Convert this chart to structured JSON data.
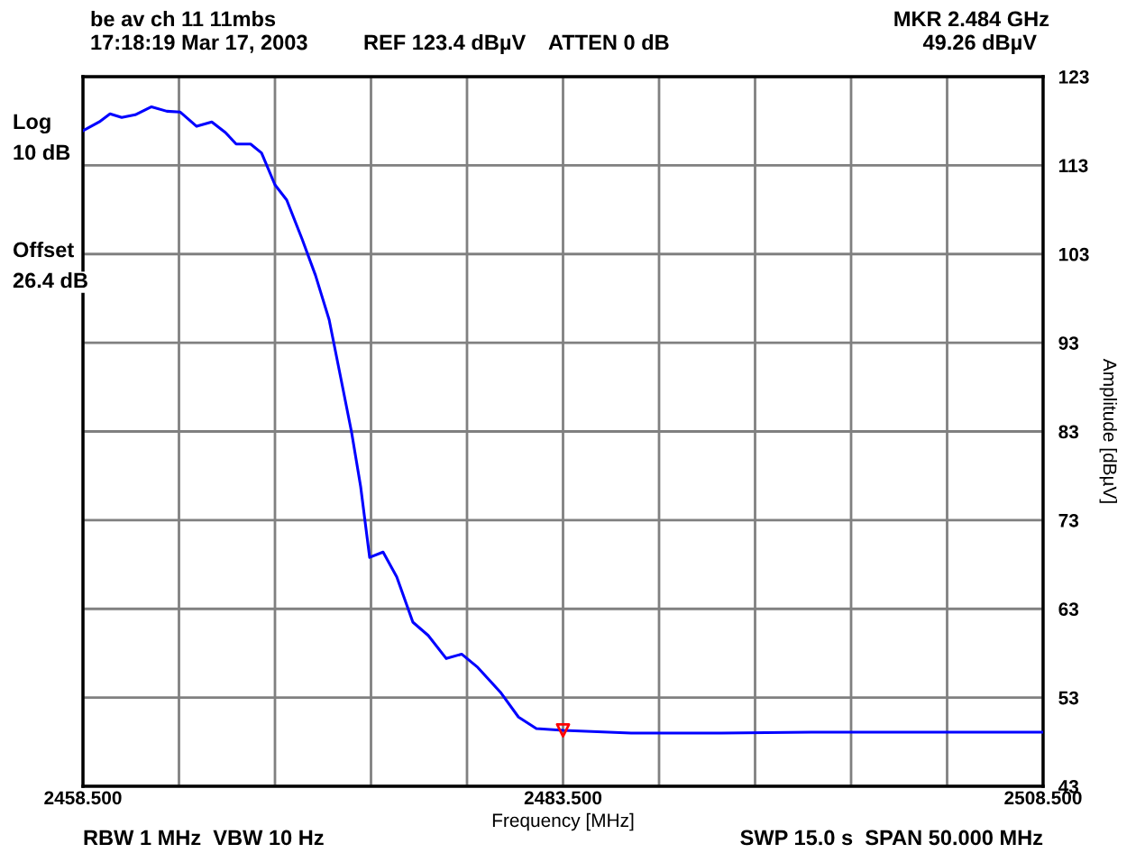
{
  "chart_data": {
    "type": "line",
    "title": "be av ch 11 11mbs",
    "xlabel": "Frequency [MHz]",
    "ylabel": "Amplitude [dBµV]",
    "annotations": [
      "17:18:19 Mar 17, 2003",
      "REF 123.4 dBµV",
      "ATTEN 0 dB",
      "MKR 2.484 GHz",
      "49.26 dBµV",
      "Log",
      "10 dB",
      "Offset",
      "26.4 dB",
      "RBW 1 MHz  VBW 10 Hz",
      "SWP 15.0 s  SPAN 50.000 MHz"
    ],
    "xlim": [
      2458.5,
      2508.5
    ],
    "xticks": [
      {
        "value": 2458.5,
        "label": "2458.500"
      },
      {
        "value": 2463.5,
        "label": null
      },
      {
        "value": 2468.5,
        "label": null
      },
      {
        "value": 2473.5,
        "label": null
      },
      {
        "value": 2478.5,
        "label": null
      },
      {
        "value": 2483.5,
        "label": "2483.500"
      },
      {
        "value": 2488.5,
        "label": null
      },
      {
        "value": 2493.5,
        "label": null
      },
      {
        "value": 2498.5,
        "label": null
      },
      {
        "value": 2503.5,
        "label": null
      },
      {
        "value": 2508.5,
        "label": "2508.500"
      }
    ],
    "ylim": [
      43,
      123
    ],
    "yticks": [
      43,
      53,
      63,
      73,
      83,
      93,
      103,
      113,
      123
    ],
    "grid": true,
    "series": [
      {
        "color": "#0000ff",
        "marker": "none",
        "line_style": "solid",
        "x": [
          2458.5,
          2459.35,
          2459.91,
          2460.52,
          2461.22,
          2462.07,
          2462.87,
          2463.57,
          2464.42,
          2465.21,
          2465.92,
          2466.48,
          2467.23,
          2467.8,
          2468.5,
          2469.11,
          2469.91,
          2470.61,
          2471.32,
          2471.93,
          2472.49,
          2472.96,
          2473.43,
          2474.13,
          2474.84,
          2475.68,
          2476.48,
          2477.42,
          2478.22,
          2479.06,
          2480.24,
          2481.18,
          2482.11,
          2483.52,
          2487.05,
          2491.74,
          2496.43,
          2501.13,
          2508.5
        ],
        "values": [
          116.9,
          117.9,
          118.8,
          118.4,
          118.7,
          119.6,
          119.1,
          119.0,
          117.4,
          117.9,
          116.7,
          115.4,
          115.4,
          114.4,
          110.8,
          109.1,
          104.7,
          100.6,
          95.6,
          89.0,
          82.9,
          76.8,
          68.8,
          69.4,
          66.6,
          61.5,
          60.0,
          57.4,
          57.9,
          56.4,
          53.6,
          50.8,
          49.5,
          49.3,
          49.0,
          49.0,
          49.1,
          49.1,
          49.1
        ]
      },
      {
        "type": "scatter",
        "color": "#ff0000",
        "marker": "triangle",
        "x": [
          2483.5
        ],
        "values": [
          49.3
        ]
      }
    ]
  }
}
